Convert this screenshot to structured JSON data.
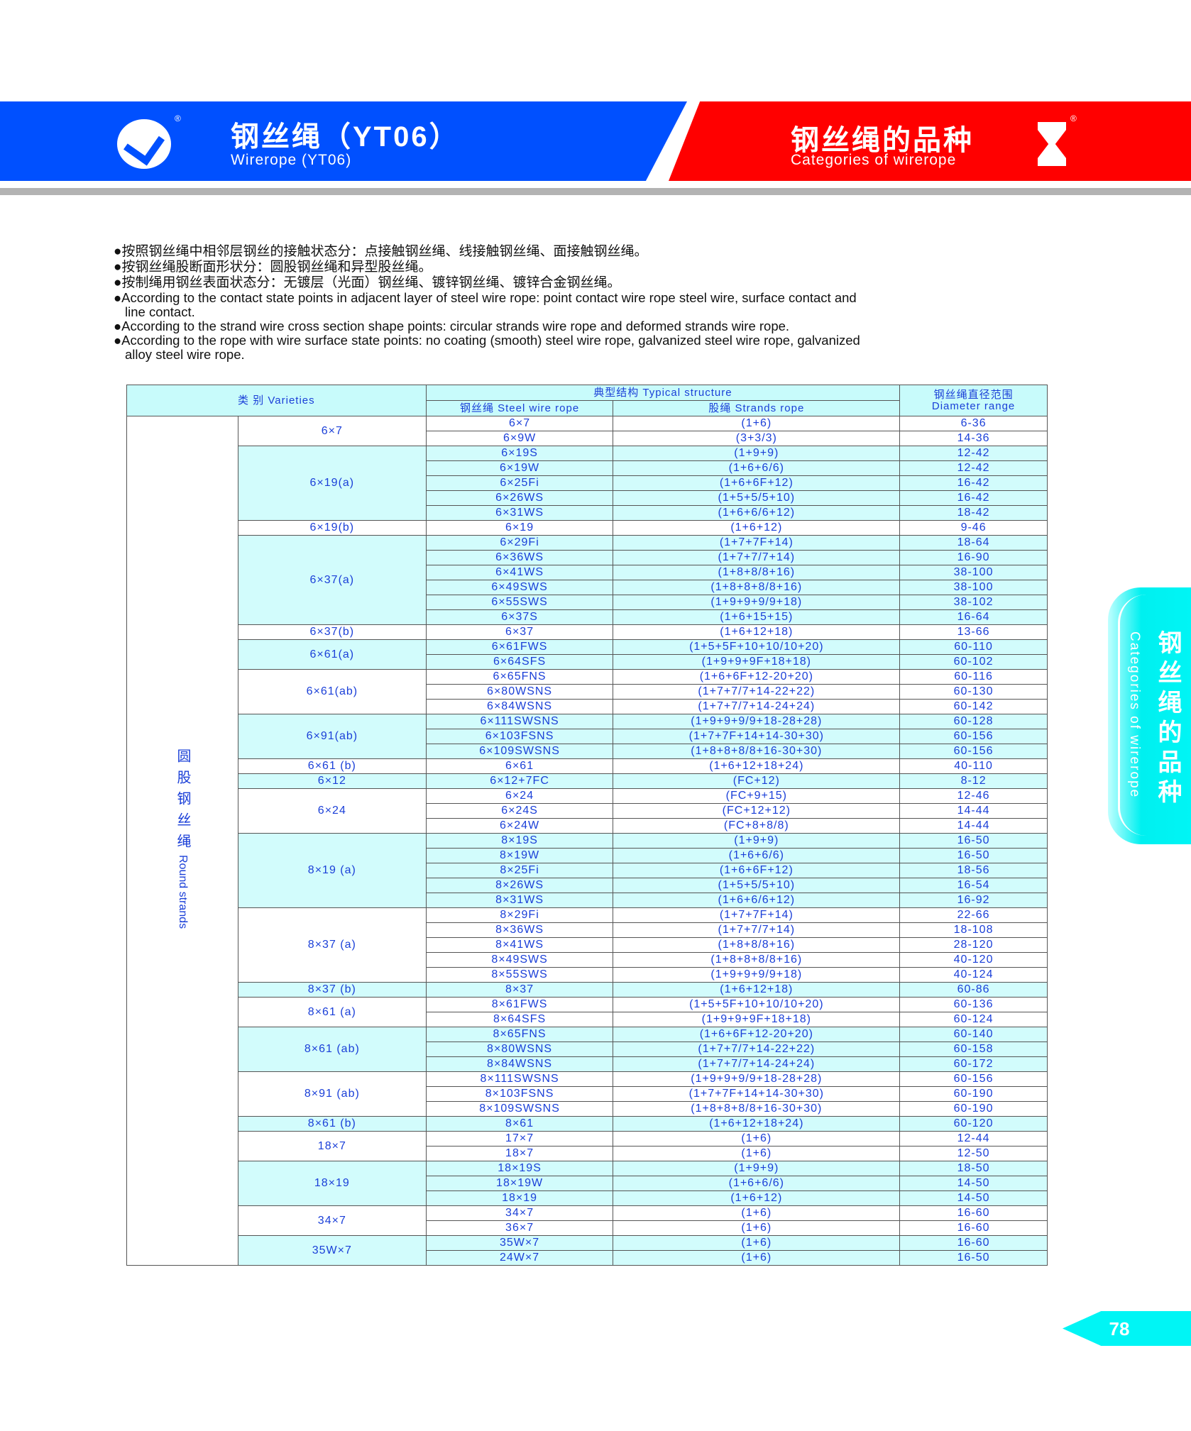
{
  "header": {
    "left_title_cn": "钢丝绳（YT06）",
    "left_title_en": "Wirerope (YT06)",
    "right_title_cn": "钢丝绳的品种",
    "right_title_en": "Categories of wirerope",
    "registered_mark": "®",
    "colors": {
      "blue": "#0050ff",
      "red": "#ff0000",
      "cyan": "#00f5f5"
    }
  },
  "bullets": [
    "●按照钢丝绳中相邻层钢丝的接触状态分：点接触钢丝绳、线接触钢丝绳、面接触钢丝绳。",
    "●按钢丝绳股断面形状分：圆股钢丝绳和异型股丝绳。",
    "●按制绳用钢丝表面状态分：无镀层（光面）钢丝绳、镀锌钢丝绳、镀锌合金钢丝绳。",
    "●According to the contact state points in adjacent layer of steel wire rope: point contact wire rope steel wire, surface contact and",
    "line contact.",
    "●According to the strand wire cross section shape points: circular strands wire rope and deformed strands wire rope.",
    "●According to the rope with wire surface state points: no coating (smooth) steel wire rope, galvanized steel wire rope, galvanized",
    "alloy steel wire rope."
  ],
  "table": {
    "headers": {
      "varieties": "类  别 Varieties",
      "typical": "典型结构   Typical structure",
      "steel": "钢丝绳 Steel wire rope",
      "strands": "股绳  Strands rope",
      "diameter_cn": "钢丝绳直径范围",
      "diameter_en": "Diameter range"
    },
    "category_cn": "圆股钢丝绳",
    "category_en": "Round strands",
    "groups": [
      {
        "name": "6×7",
        "rows": [
          [
            "6×7",
            "(1+6)",
            "6-36"
          ],
          [
            "6×9W",
            "(3+3/3)",
            "14-36"
          ]
        ]
      },
      {
        "name": "6×19(a)",
        "rows": [
          [
            "6×19S",
            "(1+9+9)",
            "12-42"
          ],
          [
            "6×19W",
            "(1+6+6/6)",
            "12-42"
          ],
          [
            "6×25Fi",
            "(1+6+6F+12)",
            "16-42"
          ],
          [
            "6×26WS",
            "(1+5+5/5+10)",
            "16-42"
          ],
          [
            "6×31WS",
            "(1+6+6/6+12)",
            "18-42"
          ]
        ]
      },
      {
        "name": "6×19(b)",
        "rows": [
          [
            "6×19",
            "(1+6+12)",
            "9-46"
          ]
        ]
      },
      {
        "name": "6×37(a)",
        "rows": [
          [
            "6×29Fi",
            "(1+7+7F+14)",
            "18-64"
          ],
          [
            "6×36WS",
            "(1+7+7/7+14)",
            "16-90"
          ],
          [
            "6×41WS",
            "(1+8+8/8+16)",
            "38-100"
          ],
          [
            "6×49SWS",
            "(1+8+8+8/8+16)",
            "38-100"
          ],
          [
            "6×55SWS",
            "(1+9+9+9/9+18)",
            "38-102"
          ],
          [
            "6×37S",
            "(1+6+15+15)",
            "16-64"
          ]
        ]
      },
      {
        "name": "6×37(b)",
        "rows": [
          [
            "6×37",
            "(1+6+12+18)",
            "13-66"
          ]
        ]
      },
      {
        "name": "6×61(a)",
        "rows": [
          [
            "6×61FWS",
            "(1+5+5F+10+10/10+20)",
            "60-110"
          ],
          [
            "6×64SFS",
            "(1+9+9+9F+18+18)",
            "60-102"
          ]
        ]
      },
      {
        "name": "6×61(ab)",
        "rows": [
          [
            "6×65FNS",
            "(1+6+6F+12-20+20)",
            "60-116"
          ],
          [
            "6×80WSNS",
            "(1+7+7/7+14-22+22)",
            "60-130"
          ],
          [
            "6×84WSNS",
            "(1+7+7/7+14-24+24)",
            "60-142"
          ]
        ]
      },
      {
        "name": "6×91(ab)",
        "rows": [
          [
            "6×111SWSNS",
            "(1+9+9+9/9+18-28+28)",
            "60-128"
          ],
          [
            "6×103FSNS",
            "(1+7+7F+14+14-30+30)",
            "60-156"
          ],
          [
            "6×109SWSNS",
            "(1+8+8+8/8+16-30+30)",
            "60-156"
          ]
        ]
      },
      {
        "name": "6×61 (b)",
        "rows": [
          [
            "6×61",
            "(1+6+12+18+24)",
            "40-110"
          ]
        ]
      },
      {
        "name": "6×12",
        "rows": [
          [
            "6×12+7FC",
            "(FC+12)",
            "8-12"
          ]
        ]
      },
      {
        "name": "6×24",
        "rows": [
          [
            "6×24",
            "(FC+9+15)",
            "12-46"
          ],
          [
            "6×24S",
            "(FC+12+12)",
            "14-44"
          ],
          [
            "6×24W",
            "(FC+8+8/8)",
            "14-44"
          ]
        ]
      },
      {
        "name": "8×19 (a)",
        "rows": [
          [
            "8×19S",
            "(1+9+9)",
            "16-50"
          ],
          [
            "8×19W",
            "(1+6+6/6)",
            "16-50"
          ],
          [
            "8×25Fi",
            "(1+6+6F+12)",
            "18-56"
          ],
          [
            "8×26WS",
            "(1+5+5/5+10)",
            "16-54"
          ],
          [
            "8×31WS",
            "(1+6+6/6+12)",
            "16-92"
          ]
        ]
      },
      {
        "name": "8×37 (a)",
        "rows": [
          [
            "8×29Fi",
            "(1+7+7F+14)",
            "22-66"
          ],
          [
            "8×36WS",
            "(1+7+7/7+14)",
            "18-108"
          ],
          [
            "8×41WS",
            "(1+8+8/8+16)",
            "28-120"
          ],
          [
            "8×49SWS",
            "(1+8+8+8/8+16)",
            "40-120"
          ],
          [
            "8×55SWS",
            "(1+9+9+9/9+18)",
            "40-124"
          ]
        ]
      },
      {
        "name": "8×37 (b)",
        "rows": [
          [
            "8×37",
            "(1+6+12+18)",
            "60-86"
          ]
        ]
      },
      {
        "name": "8×61 (a)",
        "rows": [
          [
            "8×61FWS",
            "(1+5+5F+10+10/10+20)",
            "60-136"
          ],
          [
            "8×64SFS",
            "(1+9+9+9F+18+18)",
            "60-124"
          ]
        ]
      },
      {
        "name": "8×61 (ab)",
        "rows": [
          [
            "8×65FNS",
            "(1+6+6F+12-20+20)",
            "60-140"
          ],
          [
            "8×80WSNS",
            "(1+7+7/7+14-22+22)",
            "60-158"
          ],
          [
            "8×84WSNS",
            "(1+7+7/7+14-24+24)",
            "60-172"
          ]
        ]
      },
      {
        "name": "8×91 (ab)",
        "rows": [
          [
            "8×111SWSNS",
            "(1+9+9+9/9+18-28+28)",
            "60-156"
          ],
          [
            "8×103FSNS",
            "(1+7+7F+14+14-30+30)",
            "60-190"
          ],
          [
            "8×109SWSNS",
            "(1+8+8+8/8+16-30+30)",
            "60-190"
          ]
        ]
      },
      {
        "name": "8×61 (b)",
        "rows": [
          [
            "8×61",
            "(1+6+12+18+24)",
            "60-120"
          ]
        ]
      },
      {
        "name": "18×7",
        "rows": [
          [
            "17×7",
            "(1+6)",
            "12-44"
          ],
          [
            "18×7",
            "(1+6)",
            "12-50"
          ]
        ]
      },
      {
        "name": "18×19",
        "rows": [
          [
            "18×19S",
            "(1+9+9)",
            "18-50"
          ],
          [
            "18×19W",
            "(1+6+6/6)",
            "14-50"
          ],
          [
            "18×19",
            "(1+6+12)",
            "14-50"
          ]
        ]
      },
      {
        "name": "34×7",
        "rows": [
          [
            "34×7",
            "(1+6)",
            "16-60"
          ],
          [
            "36×7",
            "(1+6)",
            "16-60"
          ]
        ]
      },
      {
        "name": "35W×7",
        "rows": [
          [
            "35W×7",
            "(1+6)",
            "16-60"
          ],
          [
            "24W×7",
            "(1+6)",
            "16-50"
          ]
        ]
      }
    ]
  },
  "side_tab": {
    "cn": "钢丝绳的品种",
    "en": "Categories of wirerope"
  },
  "page_number": "78"
}
